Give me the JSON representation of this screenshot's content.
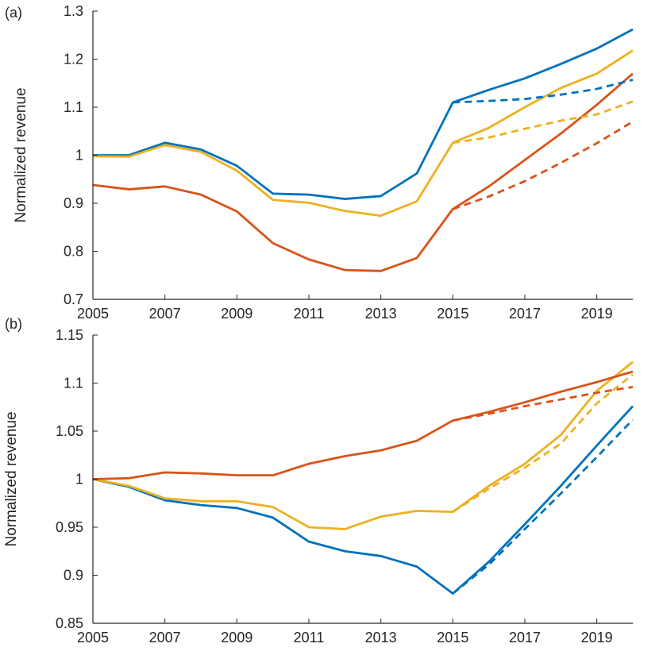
{
  "chart_data": [
    {
      "panel_label": "(a)",
      "type": "line",
      "ylabel": "Normalized revenue",
      "xlabel": "",
      "xlim": [
        2005,
        2020
      ],
      "ylim": [
        0.7,
        1.3
      ],
      "xticks": [
        2005,
        2007,
        2009,
        2011,
        2013,
        2015,
        2017,
        2019
      ],
      "xtick_labels": [
        "2005",
        "2007",
        "2009",
        "2011",
        "2013",
        "2015",
        "2017",
        "2019"
      ],
      "yticks": [
        0.7,
        0.8,
        0.9,
        1.0,
        1.1,
        1.2,
        1.3
      ],
      "ytick_labels": [
        "0.7",
        "0.8",
        "0.9",
        "1",
        "1.1",
        "1.2",
        "1.3"
      ],
      "series": [
        {
          "name": "blue",
          "color": "#0072BD",
          "style": "solid",
          "x": [
            2005,
            2006,
            2007,
            2008,
            2009,
            2010,
            2011,
            2012,
            2013,
            2014,
            2015,
            2016,
            2017,
            2018,
            2019,
            2020
          ],
          "y": [
            1.0,
            1.0,
            1.026,
            1.012,
            0.978,
            0.92,
            0.918,
            0.909,
            0.915,
            0.962,
            1.11,
            1.136,
            1.16,
            1.19,
            1.222,
            1.262
          ]
        },
        {
          "name": "yellow",
          "color": "#EDB120",
          "style": "solid",
          "x": [
            2005,
            2006,
            2007,
            2008,
            2009,
            2010,
            2011,
            2012,
            2013,
            2014,
            2015,
            2016,
            2017,
            2018,
            2019,
            2020
          ],
          "y": [
            0.998,
            0.997,
            1.021,
            1.007,
            0.968,
            0.907,
            0.901,
            0.884,
            0.874,
            0.904,
            1.026,
            1.057,
            1.1,
            1.14,
            1.17,
            1.218
          ]
        },
        {
          "name": "red",
          "color": "#D95319",
          "style": "solid",
          "x": [
            2005,
            2006,
            2007,
            2008,
            2009,
            2010,
            2011,
            2012,
            2013,
            2014,
            2015,
            2016,
            2017,
            2018,
            2019,
            2020
          ],
          "y": [
            0.938,
            0.929,
            0.935,
            0.918,
            0.883,
            0.817,
            0.783,
            0.761,
            0.759,
            0.786,
            0.888,
            0.935,
            0.99,
            1.045,
            1.105,
            1.17
          ]
        },
        {
          "name": "blue-projection",
          "color": "#0072BD",
          "style": "dashed",
          "x": [
            2015,
            2016,
            2017,
            2018,
            2019,
            2020
          ],
          "y": [
            1.11,
            1.113,
            1.117,
            1.126,
            1.138,
            1.157
          ]
        },
        {
          "name": "yellow-projection",
          "color": "#EDB120",
          "style": "dashed",
          "x": [
            2015,
            2016,
            2017,
            2018,
            2019,
            2020
          ],
          "y": [
            1.026,
            1.037,
            1.055,
            1.072,
            1.085,
            1.112
          ]
        },
        {
          "name": "red-projection",
          "color": "#D95319",
          "style": "dashed",
          "x": [
            2015,
            2016,
            2017,
            2018,
            2019,
            2020
          ],
          "y": [
            0.888,
            0.914,
            0.946,
            0.984,
            1.025,
            1.07
          ]
        }
      ]
    },
    {
      "panel_label": "(b)",
      "type": "line",
      "ylabel": "Normalized revenue",
      "xlabel": "",
      "xlim": [
        2005,
        2020
      ],
      "ylim": [
        0.85,
        1.15
      ],
      "xticks": [
        2005,
        2007,
        2009,
        2011,
        2013,
        2015,
        2017,
        2019
      ],
      "xtick_labels": [
        "2005",
        "2007",
        "2009",
        "2011",
        "2013",
        "2015",
        "2017",
        "2019"
      ],
      "yticks": [
        0.85,
        0.9,
        0.95,
        1.0,
        1.05,
        1.1,
        1.15
      ],
      "ytick_labels": [
        "0.85",
        "0.9",
        "0.95",
        "1",
        "1.05",
        "1.1",
        "1.15"
      ],
      "series": [
        {
          "name": "blue",
          "color": "#0072BD",
          "style": "solid",
          "x": [
            2005,
            2006,
            2007,
            2008,
            2009,
            2010,
            2011,
            2012,
            2013,
            2014,
            2015,
            2016,
            2017,
            2018,
            2019,
            2020
          ],
          "y": [
            1.0,
            0.992,
            0.978,
            0.973,
            0.97,
            0.96,
            0.935,
            0.925,
            0.92,
            0.909,
            0.881,
            0.914,
            0.953,
            0.993,
            1.035,
            1.076
          ]
        },
        {
          "name": "yellow",
          "color": "#EDB120",
          "style": "solid",
          "x": [
            2005,
            2006,
            2007,
            2008,
            2009,
            2010,
            2011,
            2012,
            2013,
            2014,
            2015,
            2016,
            2017,
            2018,
            2019,
            2020
          ],
          "y": [
            1.0,
            0.993,
            0.98,
            0.977,
            0.977,
            0.971,
            0.95,
            0.948,
            0.961,
            0.967,
            0.966,
            0.993,
            1.016,
            1.046,
            1.092,
            1.122
          ]
        },
        {
          "name": "red",
          "color": "#D95319",
          "style": "solid",
          "x": [
            2005,
            2006,
            2007,
            2008,
            2009,
            2010,
            2011,
            2012,
            2013,
            2014,
            2015,
            2016,
            2017,
            2018,
            2019,
            2020
          ],
          "y": [
            1.0,
            1.001,
            1.007,
            1.006,
            1.004,
            1.004,
            1.016,
            1.024,
            1.03,
            1.04,
            1.061,
            1.07,
            1.08,
            1.091,
            1.101,
            1.112
          ]
        },
        {
          "name": "blue-projection",
          "color": "#0072BD",
          "style": "dashed",
          "x": [
            2015,
            2016,
            2017,
            2018,
            2019,
            2020
          ],
          "y": [
            0.881,
            0.911,
            0.948,
            0.985,
            1.023,
            1.062
          ]
        },
        {
          "name": "yellow-projection",
          "color": "#EDB120",
          "style": "dashed",
          "x": [
            2015,
            2016,
            2017,
            2018,
            2019,
            2020
          ],
          "y": [
            0.966,
            0.99,
            1.012,
            1.037,
            1.079,
            1.109
          ]
        },
        {
          "name": "red-projection",
          "color": "#D95319",
          "style": "dashed",
          "x": [
            2015,
            2016,
            2017,
            2018,
            2019,
            2020
          ],
          "y": [
            1.061,
            1.068,
            1.076,
            1.083,
            1.09,
            1.096
          ]
        }
      ]
    }
  ]
}
